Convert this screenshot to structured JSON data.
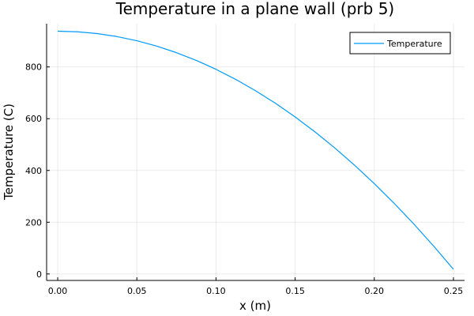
{
  "chart_data": {
    "type": "line",
    "title": "Temperature in a plane wall (prb 5)",
    "xlabel": "x (m)",
    "ylabel": "Temperature (C)",
    "xlim": [
      -0.007,
      0.257
    ],
    "ylim": [
      -25,
      967
    ],
    "xticks": [
      0.0,
      0.05,
      0.1,
      0.15,
      0.2,
      0.25
    ],
    "xtick_labels": [
      "0.00",
      "0.05",
      "0.10",
      "0.15",
      "0.20",
      "0.25"
    ],
    "yticks": [
      0,
      200,
      400,
      600,
      800
    ],
    "ytick_labels": [
      "0",
      "200",
      "400",
      "600",
      "800"
    ],
    "grid": true,
    "legend": "top-right",
    "series": [
      {
        "name": "Temperature",
        "color": "#009AFA",
        "x": [
          0.0,
          0.0125,
          0.025,
          0.0375,
          0.05,
          0.0625,
          0.075,
          0.0875,
          0.1,
          0.1125,
          0.125,
          0.1375,
          0.15,
          0.1625,
          0.175,
          0.1875,
          0.2,
          0.2125,
          0.225,
          0.2375,
          0.25
        ],
        "y": [
          938,
          935.7,
          928.8,
          917.3,
          901.2,
          880.5,
          855.2,
          825.3,
          790.8,
          751.7,
          708.0,
          659.7,
          606.8,
          549.3,
          487.2,
          420.5,
          349.2,
          273.3,
          192.8,
          107.7,
          18
        ]
      }
    ]
  }
}
